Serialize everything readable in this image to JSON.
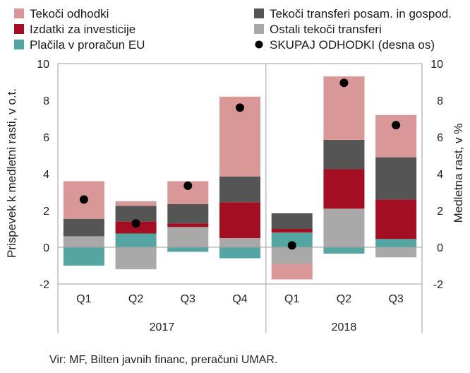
{
  "chart_data": {
    "type": "bar",
    "stacked": true,
    "categories": [
      "Q1",
      "Q2",
      "Q3",
      "Q4",
      "Q1",
      "Q2",
      "Q3"
    ],
    "groups": [
      {
        "label": "2017",
        "categories": [
          "Q1",
          "Q2",
          "Q3",
          "Q4"
        ]
      },
      {
        "label": "2018",
        "categories": [
          "Q1",
          "Q2",
          "Q3"
        ]
      }
    ],
    "series": [
      {
        "name": "Plačila v proračun EU",
        "color": "#55a5a3",
        "values": [
          -1.0,
          0.75,
          -0.25,
          -0.6,
          0.8,
          -0.35,
          0.45
        ]
      },
      {
        "name": "Ostali tekoči transferi",
        "color": "#a9a9a9",
        "values": [
          0.6,
          -1.2,
          1.1,
          0.5,
          -0.9,
          2.1,
          -0.55
        ]
      },
      {
        "name": "Izdatki za investicije",
        "color": "#a30e23",
        "values": [
          0.0,
          0.65,
          0.2,
          1.95,
          0.2,
          2.15,
          2.15
        ]
      },
      {
        "name": "Tekoči transferi posam. in gospod.",
        "color": "#555555",
        "values": [
          0.95,
          0.85,
          1.05,
          1.4,
          0.85,
          1.6,
          2.3
        ]
      },
      {
        "name": "Tekoči odhodki",
        "color": "#d99797",
        "values": [
          2.05,
          0.25,
          1.25,
          4.35,
          -0.85,
          3.45,
          2.3
        ]
      }
    ],
    "total_series": {
      "name": "SKUPAJ ODHODKI (desna os)",
      "color": "#000000",
      "axis": "right",
      "values": [
        2.6,
        1.3,
        3.35,
        7.6,
        0.1,
        8.95,
        6.65
      ]
    },
    "ylabel": "Prispevek k medletni rasti, v o.t.",
    "ylabel_right": "Medletna rast, v %",
    "ylim": [
      -2,
      10
    ],
    "ylim_right": [
      -2,
      10
    ],
    "yticks": [
      -2,
      0,
      2,
      4,
      6,
      8,
      10
    ],
    "grid": false,
    "legend_position": "top"
  },
  "legend": {
    "items": [
      {
        "label": "Tekoči odhodki",
        "color": "#d99797",
        "marker": "square"
      },
      {
        "label": "Tekoči transferi posam. in gospod.",
        "color": "#555555",
        "marker": "square"
      },
      {
        "label": "Izdatki za investicije",
        "color": "#a30e23",
        "marker": "square"
      },
      {
        "label": "Ostali tekoči transferi",
        "color": "#a9a9a9",
        "marker": "square"
      },
      {
        "label": "Plačila v proračun EU",
        "color": "#55a5a3",
        "marker": "square"
      },
      {
        "label": "SKUPAJ ODHODKI (desna os)",
        "color": "#000000",
        "marker": "circle"
      }
    ]
  },
  "source": "Vir: MF, Bilten javnih financ, preračuni UMAR."
}
